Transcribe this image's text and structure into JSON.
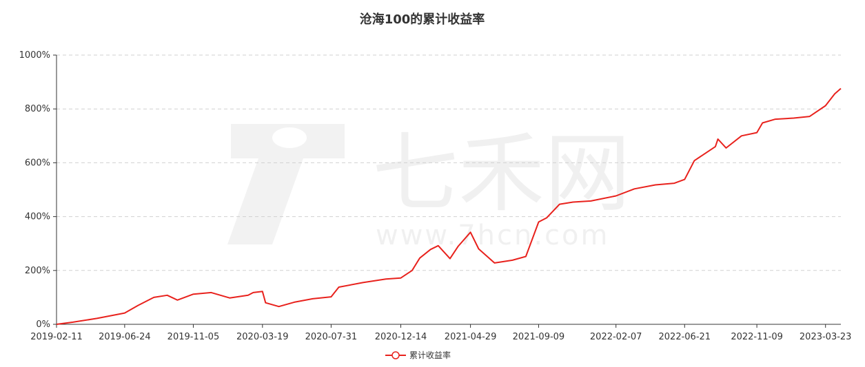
{
  "chart_data": {
    "type": "line",
    "title": "沧海100的累计收益率",
    "y_tick_labels": [
      "0%",
      "200%",
      "400%",
      "600%",
      "800%",
      "1000%"
    ],
    "y_ticks": [
      0,
      200,
      400,
      600,
      800,
      1000
    ],
    "ylim": [
      0,
      1000
    ],
    "x_tick_labels": [
      "2019-02-11",
      "2019-06-24",
      "2019-11-05",
      "2020-03-19",
      "2020-07-31",
      "2020-12-14",
      "2021-04-29",
      "2021-09-09",
      "2022-02-07",
      "2022-06-21",
      "2022-11-09",
      "2023-03-23"
    ],
    "xlim": [
      "2019-02-11",
      "2023-04-22"
    ],
    "grid": "horizontal dashed",
    "legend_position": "bottom-center",
    "series": [
      {
        "name": "累计收益率",
        "color": "#e8211c",
        "x": [
          "2019-02-11",
          "2019-03-15",
          "2019-05-01",
          "2019-06-24",
          "2019-07-20",
          "2019-08-20",
          "2019-09-15",
          "2019-10-05",
          "2019-11-05",
          "2019-12-10",
          "2020-01-15",
          "2020-02-20",
          "2020-03-01",
          "2020-03-19",
          "2020-03-25",
          "2020-04-20",
          "2020-05-20",
          "2020-06-25",
          "2020-07-31",
          "2020-08-15",
          "2020-10-01",
          "2020-11-15",
          "2020-12-14",
          "2021-01-05",
          "2021-01-20",
          "2021-02-10",
          "2021-02-25",
          "2021-03-20",
          "2021-04-05",
          "2021-04-29",
          "2021-05-15",
          "2021-06-15",
          "2021-07-20",
          "2021-08-15",
          "2021-09-09",
          "2021-09-25",
          "2021-10-20",
          "2021-11-15",
          "2021-12-20",
          "2022-02-07",
          "2022-03-15",
          "2022-04-25",
          "2022-06-01",
          "2022-06-21",
          "2022-07-10",
          "2022-08-20",
          "2022-08-25",
          "2022-09-10",
          "2022-10-10",
          "2022-11-09",
          "2022-11-20",
          "2022-12-15",
          "2023-01-20",
          "2023-02-20",
          "2023-03-23",
          "2023-04-10",
          "2023-04-22"
        ],
        "y": [
          0,
          8,
          22,
          42,
          70,
          100,
          108,
          90,
          112,
          118,
          98,
          108,
          118,
          122,
          80,
          66,
          82,
          95,
          102,
          138,
          155,
          168,
          172,
          200,
          246,
          278,
          292,
          244,
          290,
          342,
          280,
          228,
          238,
          252,
          380,
          396,
          446,
          454,
          458,
          477,
          503,
          518,
          524,
          538,
          608,
          660,
          688,
          655,
          700,
          712,
          748,
          762,
          766,
          772,
          812,
          856,
          876
        ]
      }
    ]
  },
  "legend": {
    "label": "累计收益率",
    "color": "#e8211c"
  },
  "watermark": {
    "brand": "七禾网",
    "url": "www.7hcn.com",
    "logo_color": "#f2f2f2"
  },
  "colors": {
    "axis": "#333333",
    "grid": "#d0d0d0",
    "line": "#e8211c"
  }
}
